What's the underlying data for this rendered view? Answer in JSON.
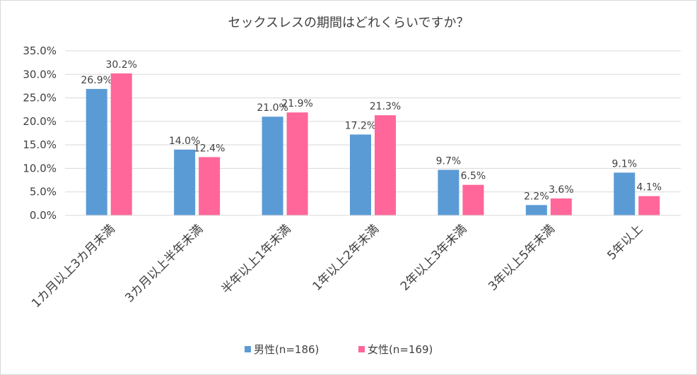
{
  "chart_data": {
    "type": "bar",
    "title": "セックスレスの期間はどれくらいですか？",
    "categories": [
      "1カ月以上3カ月未満",
      "3カ月以上半年未満",
      "半年以上1年未満",
      "1年以上2年未満",
      "2年以上3年未満",
      "3年以上5年未満",
      "5年以上"
    ],
    "series": [
      {
        "name": "男性(n=186)",
        "color": "#5b9bd5",
        "values": [
          26.9,
          14.0,
          21.0,
          17.2,
          9.7,
          2.2,
          9.1
        ],
        "labels": [
          "26.9%",
          "14.0%",
          "21.0%",
          "17.2%",
          "9.7%",
          "2.2%",
          "9.1%"
        ]
      },
      {
        "name": "女性(n=169)",
        "color": "#ff6699",
        "values": [
          30.2,
          12.4,
          21.9,
          21.3,
          6.5,
          3.6,
          4.1
        ],
        "labels": [
          "30.2%",
          "12.4%",
          "21.9%",
          "21.3%",
          "6.5%",
          "3.6%",
          "4.1%"
        ]
      }
    ],
    "ylim": [
      0,
      35
    ],
    "yticks": [
      "0.0%",
      "5.0%",
      "10.0%",
      "15.0%",
      "20.0%",
      "25.0%",
      "30.0%",
      "35.0%"
    ],
    "xlabel": "",
    "ylabel": "",
    "grid": true,
    "legend": "bottom"
  }
}
